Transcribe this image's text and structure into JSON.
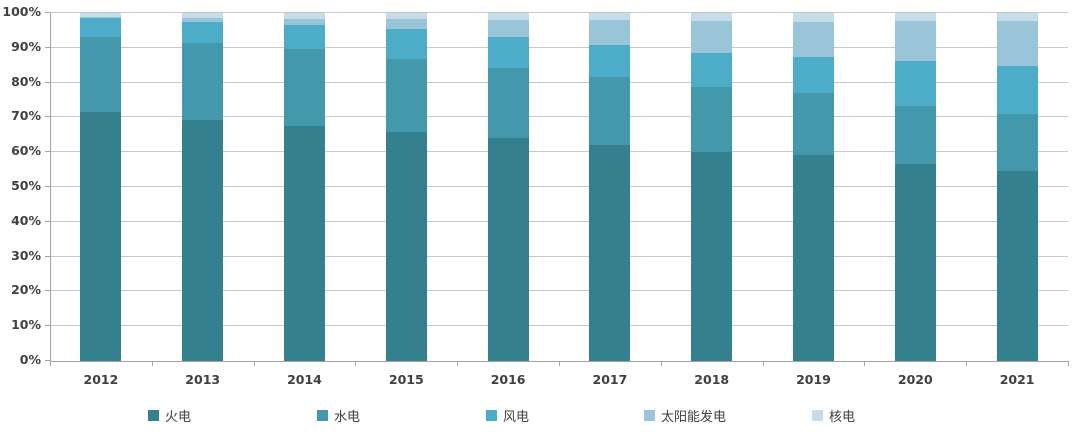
{
  "chart_data": {
    "type": "bar",
    "variant": "stacked-100-percent",
    "title": "",
    "xlabel": "",
    "ylabel": "",
    "ylim": [
      0,
      100
    ],
    "grid": true,
    "legend_position": "bottom",
    "y_tick_labels": [
      "0%",
      "10%",
      "20%",
      "30%",
      "40%",
      "50%",
      "60%",
      "70%",
      "80%",
      "90%",
      "100%"
    ],
    "y_tick_values": [
      0,
      10,
      20,
      30,
      40,
      50,
      60,
      70,
      80,
      90,
      100
    ],
    "categories": [
      "2012",
      "2013",
      "2014",
      "2015",
      "2016",
      "2017",
      "2018",
      "2019",
      "2020",
      "2021"
    ],
    "series": [
      {
        "name": "火电",
        "color": "#35808E",
        "values": [
          71.5,
          69.2,
          67.4,
          65.8,
          64.0,
          62.2,
          60.2,
          59.2,
          56.6,
          54.6
        ]
      },
      {
        "name": "水电",
        "color": "#4398AC",
        "values": [
          21.7,
          22.2,
          22.2,
          21.1,
          20.2,
          19.3,
          18.5,
          17.7,
          16.8,
          16.5
        ]
      },
      {
        "name": "风电",
        "color": "#4DADC9",
        "values": [
          5.3,
          6.0,
          7.0,
          8.6,
          9.0,
          9.2,
          9.7,
          10.4,
          12.8,
          13.8
        ]
      },
      {
        "name": "太阳能发电",
        "color": "#9AC5D8",
        "values": [
          0.3,
          1.2,
          1.8,
          2.9,
          4.7,
          7.3,
          9.2,
          10.2,
          11.5,
          12.9
        ]
      },
      {
        "name": "核电",
        "color": "#C4DDE8",
        "values": [
          1.2,
          1.4,
          1.6,
          1.6,
          2.1,
          2.0,
          2.4,
          2.5,
          2.3,
          2.2
        ]
      }
    ],
    "colors": {
      "grid": "#c9c9c9",
      "axis": "#a3a3a3",
      "tick_text": "#404040"
    }
  }
}
